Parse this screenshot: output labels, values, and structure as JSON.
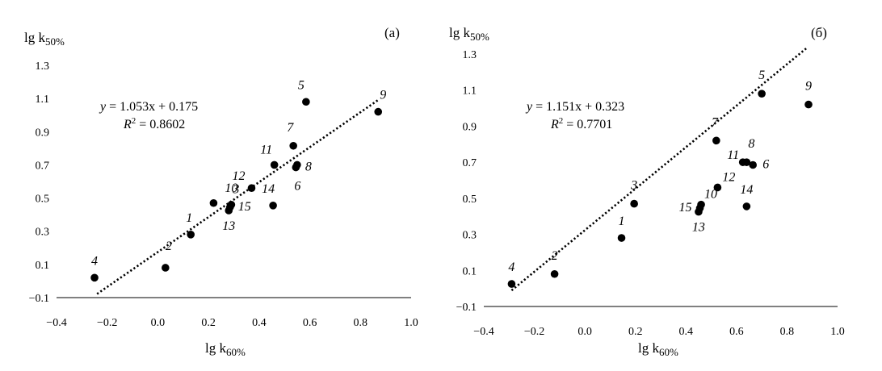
{
  "chart_data": [
    {
      "type": "scatter",
      "panel_label": "(а)",
      "ylabel": {
        "main": "lg k",
        "sub": "50%"
      },
      "xlabel": {
        "main": "lg k",
        "sub": "60%"
      },
      "xlim": [
        -0.4,
        1.0
      ],
      "ylim": [
        -0.1,
        1.3
      ],
      "xticks": [
        "−0.4",
        "−0.2",
        "0.0",
        "0.2",
        "0.4",
        "0.6",
        "0.8",
        "1.0"
      ],
      "yticks": [
        "−0.1",
        "0.1",
        "0.3",
        "0.5",
        "0.7",
        "0.9",
        "1.1",
        "1.3"
      ],
      "grid": false,
      "points": [
        {
          "label": "1",
          "x": 0.13,
          "y": 0.28
        },
        {
          "label": "2",
          "x": 0.03,
          "y": 0.08
        },
        {
          "label": "3",
          "x": 0.22,
          "y": 0.47
        },
        {
          "label": "4",
          "x": -0.25,
          "y": 0.02
        },
        {
          "label": "5",
          "x": 0.585,
          "y": 1.08
        },
        {
          "label": "6",
          "x": 0.545,
          "y": 0.685
        },
        {
          "label": "7",
          "x": 0.535,
          "y": 0.815
        },
        {
          "label": "8",
          "x": 0.55,
          "y": 0.7
        },
        {
          "label": "9",
          "x": 0.87,
          "y": 1.02
        },
        {
          "label": "10",
          "x": 0.29,
          "y": 0.46
        },
        {
          "label": "11",
          "x": 0.46,
          "y": 0.7
        },
        {
          "label": "12",
          "x": 0.37,
          "y": 0.56
        },
        {
          "label": "13",
          "x": 0.28,
          "y": 0.425
        },
        {
          "label": "14",
          "x": 0.455,
          "y": 0.455
        },
        {
          "label": "15",
          "x": 0.285,
          "y": 0.445
        }
      ],
      "trendline": {
        "slope": 1.053,
        "intercept": 0.175,
        "x_from": -0.24,
        "x_to": 0.87,
        "style": "dotted"
      },
      "equation": {
        "lhs": "y",
        "rhs": " = 1.053x + 0.175",
        "r2_label": "R",
        "r2_sup": "2",
        "r2_value": " = 0.8602"
      }
    },
    {
      "type": "scatter",
      "panel_label": "(б)",
      "ylabel": {
        "main": "lg k",
        "sub": "50%"
      },
      "xlabel": {
        "main": "lg k",
        "sub": "60%"
      },
      "xlim": [
        -0.4,
        1.0
      ],
      "ylim": [
        -0.1,
        1.3
      ],
      "xticks": [
        "−0.4",
        "−0.2",
        "0.0",
        "0.2",
        "0.4",
        "0.6",
        "0.8",
        "1.0"
      ],
      "yticks": [
        "−0.1",
        "0.1",
        "0.3",
        "0.5",
        "0.7",
        "0.9",
        "1.1",
        "1.3"
      ],
      "grid": false,
      "points": [
        {
          "label": "1",
          "x": 0.145,
          "y": 0.28
        },
        {
          "label": "2",
          "x": -0.12,
          "y": 0.08
        },
        {
          "label": "3",
          "x": 0.195,
          "y": 0.47
        },
        {
          "label": "4",
          "x": -0.29,
          "y": 0.025
        },
        {
          "label": "5",
          "x": 0.7,
          "y": 1.08
        },
        {
          "label": "6",
          "x": 0.665,
          "y": 0.685
        },
        {
          "label": "7",
          "x": 0.52,
          "y": 0.82
        },
        {
          "label": "8",
          "x": 0.64,
          "y": 0.7
        },
        {
          "label": "9",
          "x": 0.885,
          "y": 1.02
        },
        {
          "label": "10",
          "x": 0.46,
          "y": 0.465
        },
        {
          "label": "11",
          "x": 0.625,
          "y": 0.7
        },
        {
          "label": "12",
          "x": 0.525,
          "y": 0.56
        },
        {
          "label": "13",
          "x": 0.45,
          "y": 0.425
        },
        {
          "label": "14",
          "x": 0.64,
          "y": 0.455
        },
        {
          "label": "15",
          "x": 0.455,
          "y": 0.445
        }
      ],
      "trendline": {
        "slope": 1.151,
        "intercept": 0.323,
        "x_from": -0.29,
        "x_to": 0.88,
        "style": "dotted"
      },
      "equation": {
        "lhs": "y",
        "rhs": " = 1.151x + 0.323",
        "r2_label": "R",
        "r2_sup": "2",
        "r2_value": " = 0.7701"
      }
    }
  ]
}
